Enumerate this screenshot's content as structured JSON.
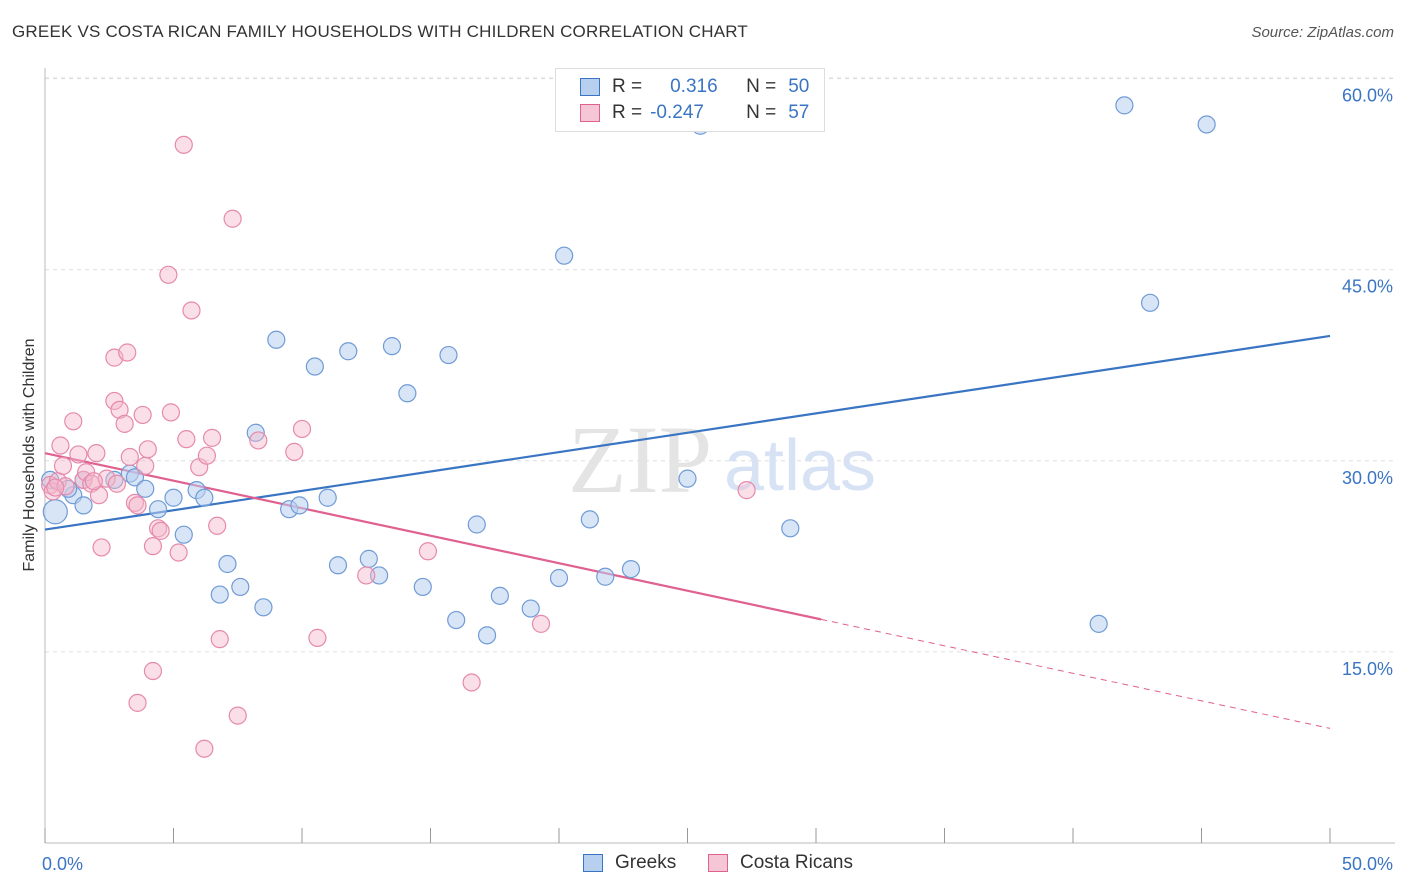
{
  "title": "GREEK VS COSTA RICAN FAMILY HOUSEHOLDS WITH CHILDREN CORRELATION CHART",
  "source": "Source: ZipAtlas.com",
  "watermark": {
    "zip": "ZIP",
    "atlas": "atlas"
  },
  "legend_top": {
    "rows": [
      {
        "r_label": "R =",
        "r_value": "0.316",
        "n_label": "N =",
        "n_value": "50"
      },
      {
        "r_label": "R =",
        "r_value": "-0.247",
        "n_label": "N =",
        "n_value": "57"
      }
    ]
  },
  "colors": {
    "blue": "#3a75c4",
    "blue_fill": "#b8d0f0",
    "pink": "#e06090",
    "pink_fill": "#f5b8cc",
    "grid": "#dddddd"
  },
  "chart_data": {
    "type": "scatter",
    "title": "GREEK VS COSTA RICAN FAMILY HOUSEHOLDS WITH CHILDREN CORRELATION CHART",
    "xlabel": "",
    "ylabel": "Family Households with Children",
    "xlim": [
      0,
      50
    ],
    "ylim": [
      0,
      63
    ],
    "x_tick_labels": [
      "0.0%",
      "50.0%"
    ],
    "y_ticks": [
      15,
      30,
      45,
      60
    ],
    "y_tick_labels": [
      "15.0%",
      "30.0%",
      "45.0%",
      "60.0%"
    ],
    "series": [
      {
        "name": "Greeks",
        "color": "#3a75c4",
        "trend": {
          "x0": 0,
          "y0": 24.6,
          "x1": 50,
          "y1": 39.8,
          "solid_to": 50
        },
        "points": [
          [
            0.2,
            28.5
          ],
          [
            0.4,
            26.0
          ],
          [
            1.1,
            27.3
          ],
          [
            1.5,
            28.5
          ],
          [
            2.7,
            28.5
          ],
          [
            3.3,
            29.0
          ],
          [
            3.5,
            28.7
          ],
          [
            3.9,
            27.8
          ],
          [
            4.4,
            26.2
          ],
          [
            5.0,
            27.1
          ],
          [
            5.4,
            24.2
          ],
          [
            5.9,
            27.7
          ],
          [
            6.2,
            27.1
          ],
          [
            6.8,
            19.5
          ],
          [
            7.1,
            21.9
          ],
          [
            7.6,
            20.1
          ],
          [
            8.2,
            32.2
          ],
          [
            8.5,
            18.5
          ],
          [
            9.0,
            39.5
          ],
          [
            9.5,
            26.2
          ],
          [
            9.9,
            26.5
          ],
          [
            10.5,
            37.4
          ],
          [
            11.0,
            27.1
          ],
          [
            11.4,
            21.8
          ],
          [
            11.8,
            38.6
          ],
          [
            12.6,
            22.3
          ],
          [
            13.0,
            21.0
          ],
          [
            13.5,
            39.0
          ],
          [
            14.1,
            35.3
          ],
          [
            14.7,
            20.1
          ],
          [
            15.7,
            38.3
          ],
          [
            16.0,
            17.5
          ],
          [
            16.8,
            25.0
          ],
          [
            17.2,
            16.3
          ],
          [
            17.7,
            19.4
          ],
          [
            18.9,
            18.4
          ],
          [
            20.0,
            20.8
          ],
          [
            20.2,
            46.1
          ],
          [
            21.2,
            25.4
          ],
          [
            21.8,
            20.9
          ],
          [
            22.8,
            21.5
          ],
          [
            25.0,
            28.6
          ],
          [
            25.5,
            56.3
          ],
          [
            29.0,
            24.7
          ],
          [
            41.0,
            17.2
          ],
          [
            42.0,
            57.9
          ],
          [
            43.0,
            42.4
          ],
          [
            45.2,
            56.4
          ],
          [
            1.5,
            26.5
          ],
          [
            0.9,
            27.8
          ]
        ]
      },
      {
        "name": "Costa Ricans",
        "color": "#e06090",
        "trend": {
          "x0": 0,
          "y0": 30.6,
          "x1": 50,
          "y1": 9.0,
          "solid_to": 30.2
        },
        "points": [
          [
            0.2,
            28.1
          ],
          [
            0.3,
            27.6
          ],
          [
            0.5,
            28.4
          ],
          [
            0.6,
            31.2
          ],
          [
            0.7,
            29.6
          ],
          [
            0.8,
            28.0
          ],
          [
            1.1,
            33.1
          ],
          [
            1.3,
            30.5
          ],
          [
            1.5,
            28.5
          ],
          [
            1.6,
            29.1
          ],
          [
            1.8,
            28.2
          ],
          [
            2.0,
            30.6
          ],
          [
            2.1,
            27.3
          ],
          [
            2.2,
            23.2
          ],
          [
            2.4,
            28.6
          ],
          [
            2.7,
            38.1
          ],
          [
            2.7,
            34.7
          ],
          [
            2.8,
            28.2
          ],
          [
            2.9,
            34.0
          ],
          [
            3.1,
            32.9
          ],
          [
            3.2,
            38.5
          ],
          [
            3.3,
            30.3
          ],
          [
            3.5,
            26.7
          ],
          [
            3.6,
            26.5
          ],
          [
            3.6,
            11.0
          ],
          [
            3.8,
            33.6
          ],
          [
            3.9,
            29.6
          ],
          [
            4.0,
            30.9
          ],
          [
            4.2,
            23.3
          ],
          [
            4.2,
            13.5
          ],
          [
            4.4,
            24.7
          ],
          [
            4.5,
            24.5
          ],
          [
            4.8,
            44.6
          ],
          [
            4.9,
            33.8
          ],
          [
            5.2,
            22.8
          ],
          [
            5.4,
            54.8
          ],
          [
            5.5,
            31.7
          ],
          [
            5.7,
            41.8
          ],
          [
            6.0,
            29.5
          ],
          [
            6.2,
            7.4
          ],
          [
            6.3,
            30.4
          ],
          [
            6.5,
            31.8
          ],
          [
            6.7,
            24.9
          ],
          [
            6.8,
            16.0
          ],
          [
            7.3,
            49.0
          ],
          [
            7.5,
            10.0
          ],
          [
            8.3,
            31.6
          ],
          [
            9.7,
            30.7
          ],
          [
            10.0,
            32.5
          ],
          [
            10.6,
            16.1
          ],
          [
            12.5,
            21.0
          ],
          [
            14.9,
            22.9
          ],
          [
            16.6,
            12.6
          ],
          [
            19.3,
            17.2
          ],
          [
            27.3,
            27.7
          ],
          [
            1.9,
            28.4
          ],
          [
            0.4,
            27.9
          ]
        ]
      }
    ]
  },
  "bottom_legend": {
    "greeks": "Greeks",
    "costa_ricans": "Costa Ricans"
  }
}
